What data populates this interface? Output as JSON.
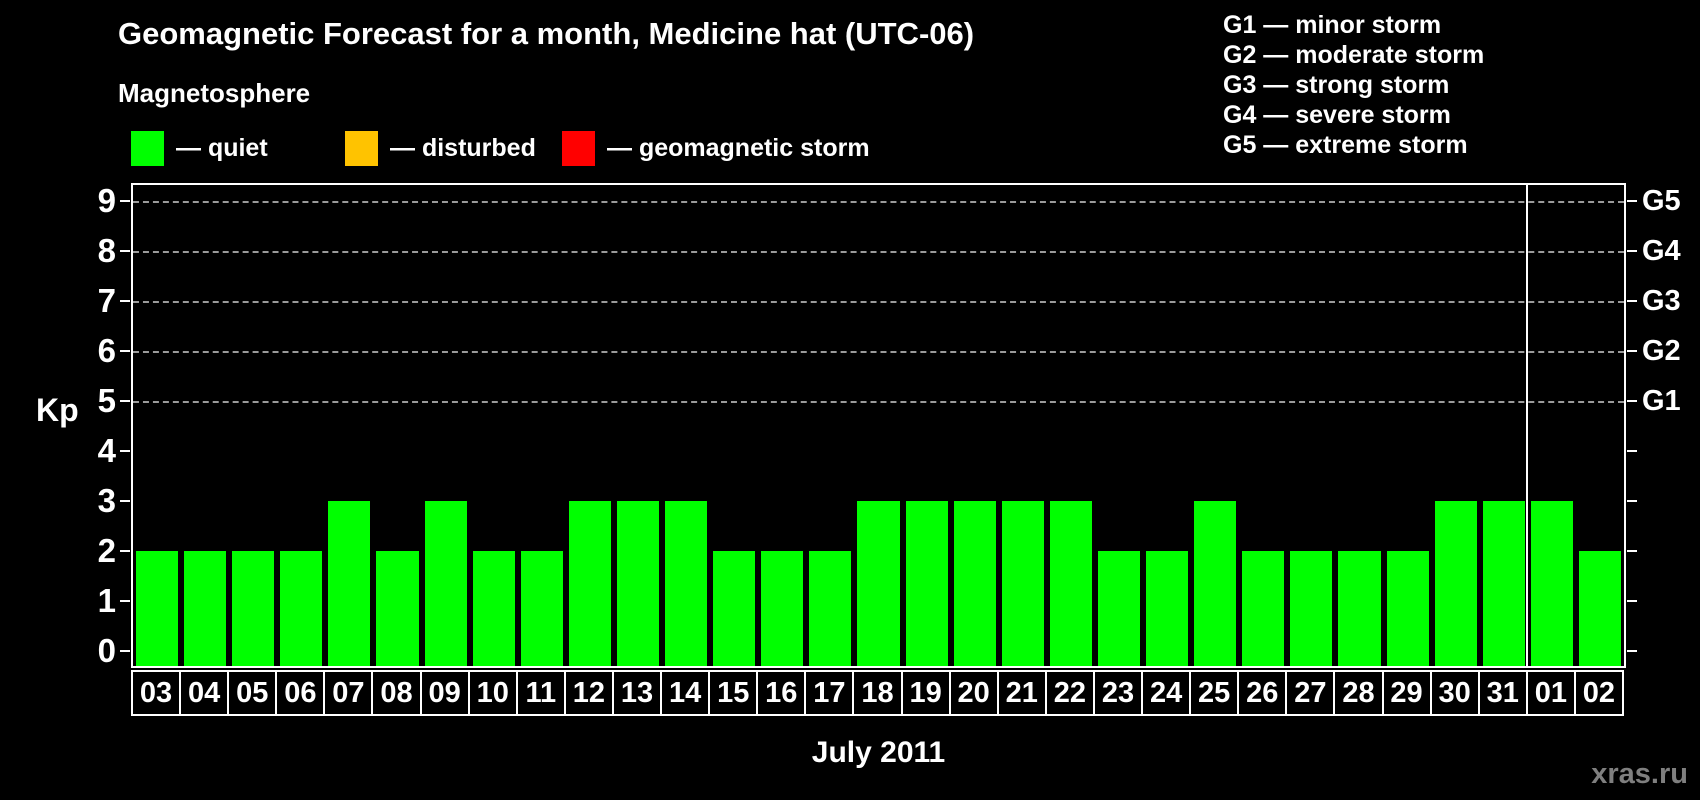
{
  "title": "Geomagnetic Forecast for a month, Medicine hat (UTC-06)",
  "legend": {
    "heading": "Magnetosphere",
    "items": [
      {
        "name": "quiet",
        "label": "— quiet",
        "color": "#00ff00"
      },
      {
        "name": "disturbed",
        "label": "— disturbed",
        "color": "#ffc300"
      },
      {
        "name": "geomagnetic-storm",
        "label": "— geomagnetic storm",
        "color": "#ff0000"
      }
    ]
  },
  "storm_scale_legend": [
    "G1 — minor storm",
    "G2 — moderate storm",
    "G3 — strong storm",
    "G4 — severe storm",
    "G5 — extreme storm"
  ],
  "chart_data": {
    "type": "bar",
    "title": "Geomagnetic Forecast for a month, Medicine hat (UTC-06)",
    "xlabel": "July 2011",
    "ylabel": "Kp",
    "ylim": [
      0,
      9
    ],
    "yticks": [
      0,
      1,
      2,
      3,
      4,
      5,
      6,
      7,
      8,
      9
    ],
    "grid": "dashed horizontal lines at Kp 5,6,7,8,9 (G1–G5 thresholds)",
    "legend_position": "top",
    "categories": [
      "03",
      "04",
      "05",
      "06",
      "07",
      "08",
      "09",
      "10",
      "11",
      "12",
      "13",
      "14",
      "15",
      "16",
      "17",
      "18",
      "19",
      "20",
      "21",
      "22",
      "23",
      "24",
      "25",
      "26",
      "27",
      "28",
      "29",
      "30",
      "31",
      "01",
      "02"
    ],
    "values": [
      2,
      2,
      2,
      2,
      3,
      2,
      3,
      2,
      2,
      3,
      3,
      3,
      2,
      2,
      2,
      3,
      3,
      3,
      3,
      3,
      2,
      2,
      3,
      2,
      2,
      2,
      2,
      3,
      3,
      3,
      2
    ],
    "bar_color": "#00ff00",
    "right_axis": [
      {
        "kp": 5,
        "label": "G1"
      },
      {
        "kp": 6,
        "label": "G2"
      },
      {
        "kp": 7,
        "label": "G3"
      },
      {
        "kp": 8,
        "label": "G4"
      },
      {
        "kp": 9,
        "label": "G5"
      }
    ],
    "month_separator_after_category": "31"
  },
  "footer": {
    "x_axis_title": "July 2011",
    "watermark": "xras.ru"
  },
  "colors": {
    "background": "#000000",
    "foreground": "#ffffff",
    "gridline": "#9b9b9b",
    "quiet": "#00ff00",
    "disturbed": "#ffc300",
    "storm": "#ff0000",
    "watermark": "#7f7f7f"
  }
}
